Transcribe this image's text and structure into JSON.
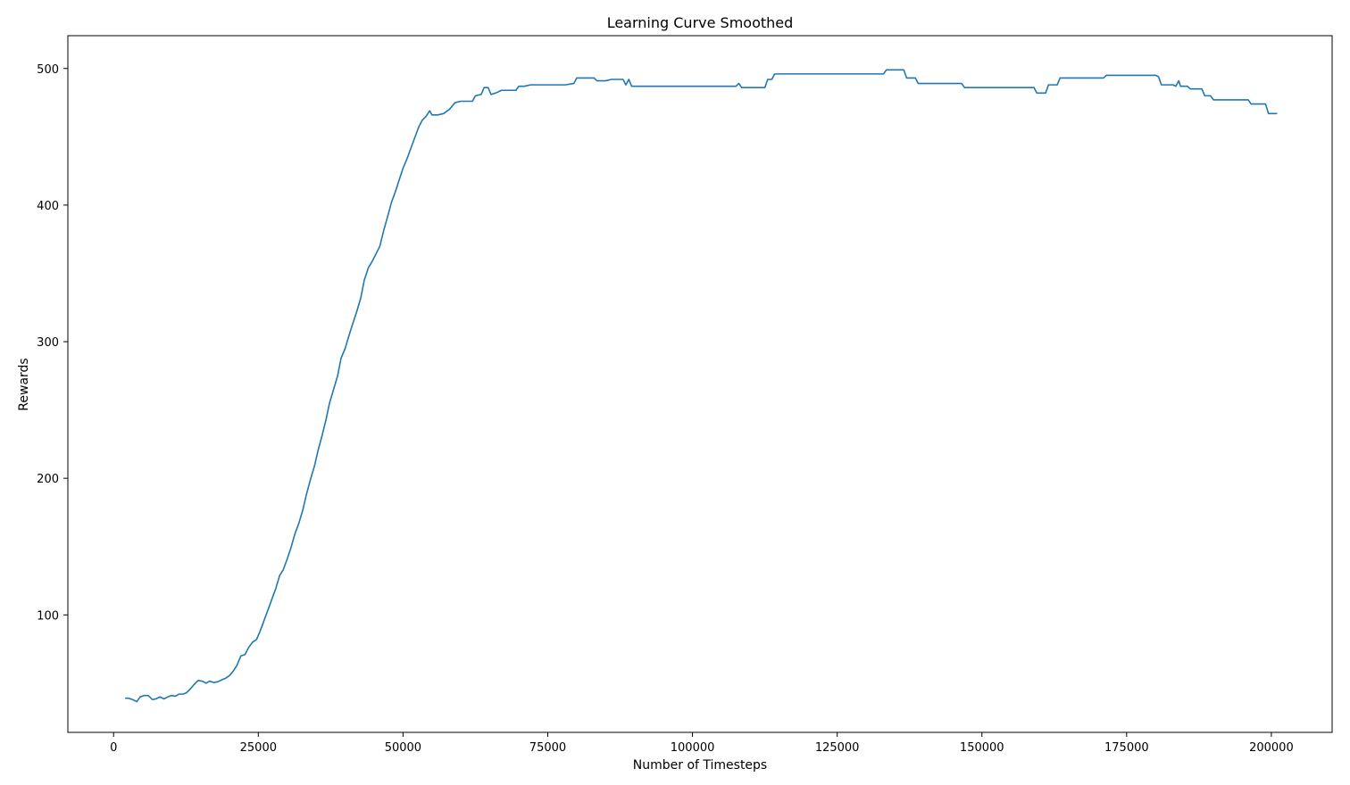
{
  "chart_data": {
    "type": "line",
    "title": "Learning Curve Smoothed",
    "xlabel": "Number of Timesteps",
    "ylabel": "Rewards",
    "xlim": [
      -7900,
      210500
    ],
    "ylim": [
      14,
      524
    ],
    "x_ticks": [
      0,
      25000,
      50000,
      75000,
      100000,
      125000,
      150000,
      175000,
      200000
    ],
    "x_tick_labels": [
      "0",
      "25000",
      "50000",
      "75000",
      "100000",
      "125000",
      "150000",
      "175000",
      "200000"
    ],
    "y_ticks": [
      100,
      200,
      300,
      400,
      500
    ],
    "y_tick_labels": [
      "100",
      "200",
      "300",
      "400",
      "500"
    ],
    "grid": false,
    "legend": "none",
    "series": [
      {
        "color": "#1f77b4",
        "points": [
          [
            2000,
            39
          ],
          [
            2600,
            39
          ],
          [
            3300,
            38
          ],
          [
            4000,
            36.5
          ],
          [
            4600,
            40
          ],
          [
            5300,
            41
          ],
          [
            6000,
            41
          ],
          [
            6700,
            38
          ],
          [
            7300,
            38.5
          ],
          [
            8000,
            40
          ],
          [
            8700,
            38.5
          ],
          [
            9400,
            40
          ],
          [
            10000,
            41
          ],
          [
            10700,
            40.5
          ],
          [
            11300,
            42
          ],
          [
            12000,
            42
          ],
          [
            12600,
            43
          ],
          [
            13300,
            46
          ],
          [
            13900,
            49
          ],
          [
            14600,
            52
          ],
          [
            15300,
            51.5
          ],
          [
            16000,
            50
          ],
          [
            16600,
            51.5
          ],
          [
            17300,
            50.5
          ],
          [
            18000,
            51
          ],
          [
            18700,
            52.5
          ],
          [
            19300,
            53.5
          ],
          [
            20000,
            55.5
          ],
          [
            20700,
            59
          ],
          [
            21300,
            63
          ],
          [
            22000,
            70
          ],
          [
            22700,
            71
          ],
          [
            23300,
            76
          ],
          [
            24000,
            80
          ],
          [
            24700,
            82
          ],
          [
            25300,
            88
          ],
          [
            26000,
            96
          ],
          [
            26700,
            104
          ],
          [
            27300,
            111
          ],
          [
            28000,
            119
          ],
          [
            28700,
            129
          ],
          [
            29300,
            133
          ],
          [
            30000,
            141
          ],
          [
            30700,
            150
          ],
          [
            31300,
            159
          ],
          [
            32000,
            167
          ],
          [
            32700,
            177
          ],
          [
            33300,
            188
          ],
          [
            34000,
            199
          ],
          [
            34700,
            209
          ],
          [
            35300,
            220
          ],
          [
            36000,
            231
          ],
          [
            36700,
            243
          ],
          [
            37300,
            255
          ],
          [
            38000,
            265
          ],
          [
            38700,
            275
          ],
          [
            39300,
            288
          ],
          [
            40000,
            295
          ],
          [
            40700,
            305
          ],
          [
            41300,
            313
          ],
          [
            42000,
            322
          ],
          [
            42700,
            332
          ],
          [
            43300,
            345
          ],
          [
            44000,
            354
          ],
          [
            44700,
            359
          ],
          [
            45300,
            364
          ],
          [
            46000,
            370
          ],
          [
            46700,
            382
          ],
          [
            47300,
            391
          ],
          [
            48000,
            402
          ],
          [
            48700,
            410
          ],
          [
            49300,
            418
          ],
          [
            50000,
            427
          ],
          [
            50700,
            434
          ],
          [
            51300,
            441
          ],
          [
            52000,
            449
          ],
          [
            52700,
            457
          ],
          [
            53300,
            462
          ],
          [
            54000,
            465
          ],
          [
            54600,
            469
          ],
          [
            55000,
            466
          ],
          [
            56000,
            466
          ],
          [
            57000,
            467
          ],
          [
            58000,
            470
          ],
          [
            59000,
            475
          ],
          [
            60000,
            476
          ],
          [
            61000,
            476
          ],
          [
            62000,
            476
          ],
          [
            62500,
            480
          ],
          [
            63500,
            481
          ],
          [
            64000,
            486
          ],
          [
            64700,
            486
          ],
          [
            65200,
            481
          ],
          [
            66000,
            482
          ],
          [
            67000,
            484
          ],
          [
            68000,
            484
          ],
          [
            69000,
            484
          ],
          [
            69500,
            484
          ],
          [
            70000,
            487
          ],
          [
            71000,
            487
          ],
          [
            72000,
            488
          ],
          [
            73000,
            488
          ],
          [
            75000,
            488
          ],
          [
            78000,
            488
          ],
          [
            79500,
            489
          ],
          [
            80000,
            493
          ],
          [
            82000,
            493
          ],
          [
            83000,
            493
          ],
          [
            83500,
            491
          ],
          [
            85000,
            491
          ],
          [
            86000,
            492
          ],
          [
            88000,
            492
          ],
          [
            88500,
            488
          ],
          [
            89000,
            492
          ],
          [
            89500,
            487
          ],
          [
            91000,
            487
          ],
          [
            95000,
            487
          ],
          [
            100000,
            487
          ],
          [
            105000,
            487
          ],
          [
            107500,
            487
          ],
          [
            108000,
            489
          ],
          [
            108500,
            486
          ],
          [
            110000,
            486
          ],
          [
            112500,
            486
          ],
          [
            113000,
            492
          ],
          [
            113700,
            492
          ],
          [
            114200,
            496
          ],
          [
            118000,
            496
          ],
          [
            122000,
            496
          ],
          [
            126000,
            496
          ],
          [
            130000,
            496
          ],
          [
            133000,
            496
          ],
          [
            133500,
            499
          ],
          [
            135000,
            499
          ],
          [
            136500,
            499
          ],
          [
            137000,
            493
          ],
          [
            138500,
            493
          ],
          [
            139000,
            489
          ],
          [
            142000,
            489
          ],
          [
            145000,
            489
          ],
          [
            146500,
            489
          ],
          [
            147000,
            486
          ],
          [
            150000,
            486
          ],
          [
            155000,
            486
          ],
          [
            159000,
            486
          ],
          [
            159500,
            482
          ],
          [
            161000,
            482
          ],
          [
            161500,
            488
          ],
          [
            163000,
            488
          ],
          [
            163500,
            493
          ],
          [
            167000,
            493
          ],
          [
            171000,
            493
          ],
          [
            171500,
            495
          ],
          [
            176000,
            495
          ],
          [
            180000,
            495
          ],
          [
            180500,
            494
          ],
          [
            181000,
            488
          ],
          [
            183000,
            488
          ],
          [
            183500,
            487
          ],
          [
            184000,
            491
          ],
          [
            184300,
            487
          ],
          [
            185500,
            487
          ],
          [
            186000,
            485
          ],
          [
            188000,
            485
          ],
          [
            188500,
            480
          ],
          [
            189000,
            480
          ],
          [
            189500,
            480
          ],
          [
            190000,
            477
          ],
          [
            193000,
            477
          ],
          [
            196000,
            477
          ],
          [
            196500,
            474
          ],
          [
            199000,
            474
          ],
          [
            199500,
            467
          ],
          [
            201000,
            467
          ]
        ]
      }
    ]
  }
}
